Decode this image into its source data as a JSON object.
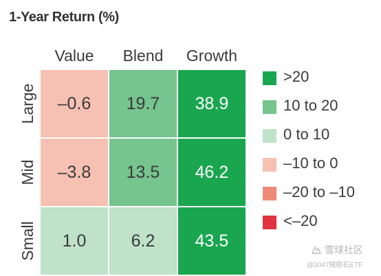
{
  "chart_data": {
    "type": "heatmap",
    "title": "1-Year Return (%)",
    "columns": [
      "Value",
      "Blend",
      "Growth"
    ],
    "rows": [
      "Large",
      "Mid",
      "Small"
    ],
    "values": [
      [
        -0.6,
        19.7,
        38.9
      ],
      [
        -3.8,
        13.5,
        46.2
      ],
      [
        1.0,
        6.2,
        43.5
      ]
    ],
    "value_labels": [
      [
        "–0.6",
        "19.7",
        "38.9"
      ],
      [
        "–3.8",
        "13.5",
        "46.2"
      ],
      [
        "1.0",
        "6.2",
        "43.5"
      ]
    ],
    "legend": [
      {
        "label": ">20",
        "color": "#1aa64f"
      },
      {
        "label": "10 to 20",
        "color": "#76c48e"
      },
      {
        "label": "0 to 10",
        "color": "#bfe2c8"
      },
      {
        "label": "–10 to 0",
        "color": "#f6c0b2"
      },
      {
        "label": "–20 to –10",
        "color": "#ec8b78"
      },
      {
        "label": "<–20",
        "color": "#e0323f"
      }
    ],
    "legend_placement": "right",
    "grid": true
  },
  "watermark": {
    "name": "雪球社区",
    "handle": "@3047贼稳石ETF"
  }
}
